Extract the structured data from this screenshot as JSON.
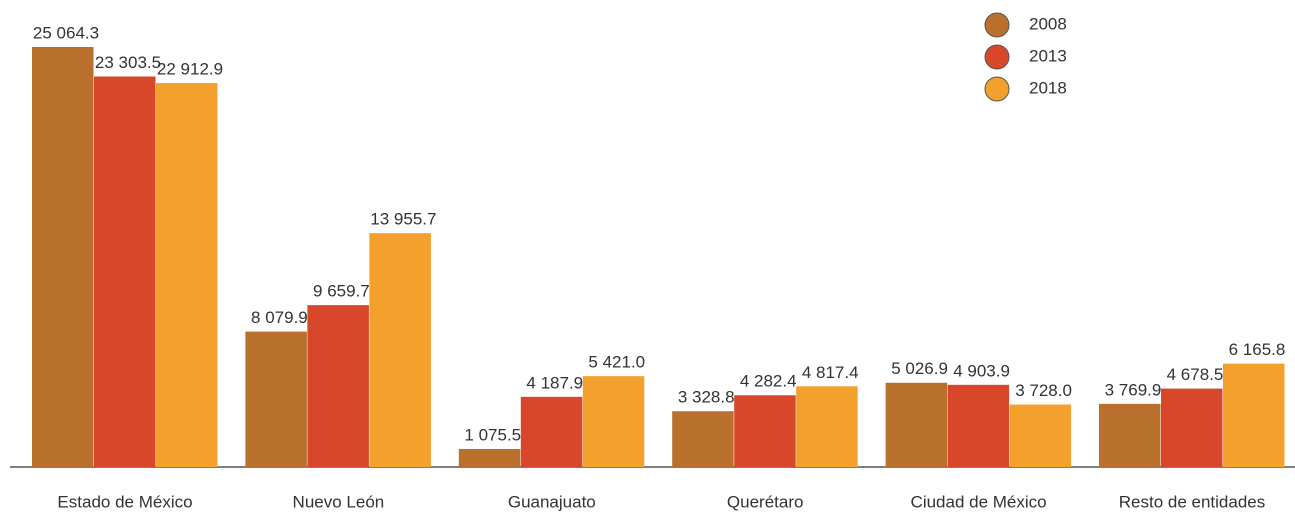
{
  "chart_data": {
    "type": "bar",
    "categories": [
      "Estado de México",
      "Nuevo León",
      "Guanajuato",
      "Querétaro",
      "Ciudad de México",
      "Resto de entidades"
    ],
    "series": [
      {
        "name": "2008",
        "color": "#b8702c",
        "values": [
          25064.3,
          8079.9,
          1075.5,
          3328.8,
          5026.9,
          3769.9
        ],
        "value_labels": [
          "25 064.3",
          "8 079.9",
          "1 075.5",
          "3 328.8",
          "5 026.9",
          "3 769.9"
        ]
      },
      {
        "name": "2013",
        "color": "#d9472a",
        "values": [
          23303.5,
          9659.7,
          4187.9,
          4282.4,
          4903.9,
          4678.5
        ],
        "value_labels": [
          "23 303.5",
          "9 659.7",
          "4 187.9",
          "4 282.4",
          "4 903.9",
          "4 678.5"
        ]
      },
      {
        "name": "2018",
        "color": "#f4a02c",
        "values": [
          22912.9,
          13955.7,
          5421.0,
          4817.4,
          3728.0,
          6165.8
        ],
        "value_labels": [
          "22 912.9",
          "13 955.7",
          "5 421.0",
          "4 817.4",
          "3 728.0",
          "6 165.8"
        ]
      }
    ],
    "legend": "top-right",
    "grid": false
  }
}
